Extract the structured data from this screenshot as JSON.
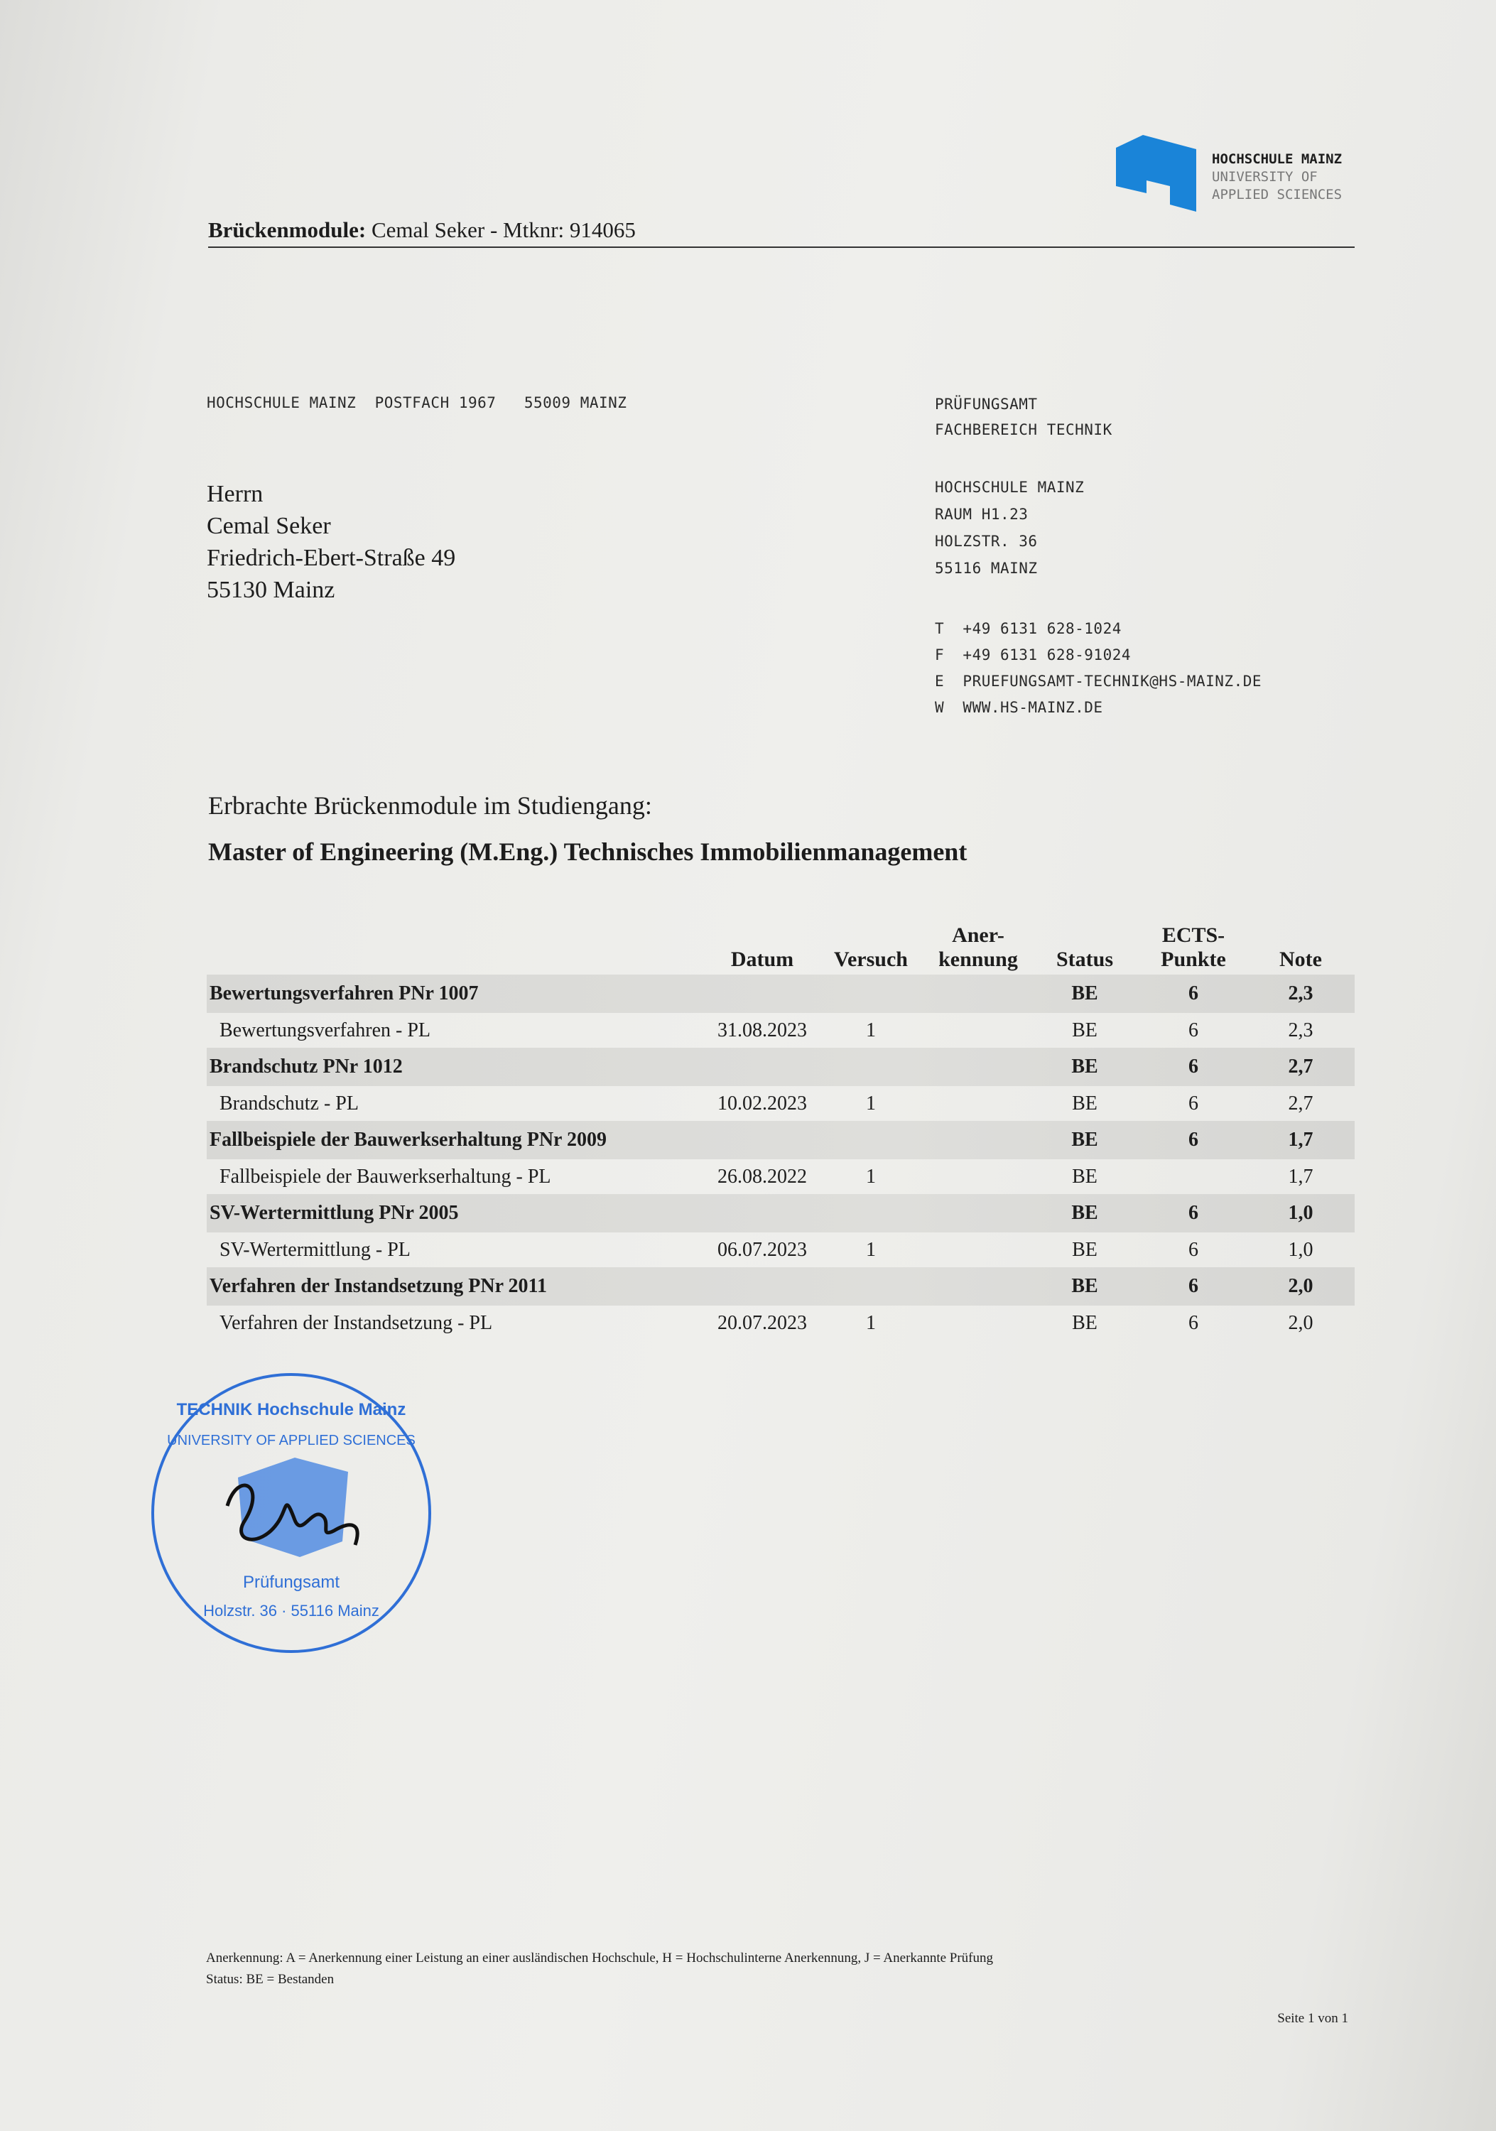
{
  "logo": {
    "line1": "HOCHSCHULE MAINZ",
    "line2": "UNIVERSITY OF",
    "line3": "APPLIED SCIENCES",
    "color": "#1a84d8"
  },
  "header": {
    "label": "Brückenmodule:",
    "text": "Cemal Seker - Mtknr: 914065"
  },
  "sender_line": "HOCHSCHULE MAINZ  POSTFACH 1967   55009 MAINZ",
  "recipient": [
    "Herrn",
    "Cemal Seker",
    "Friedrich-Ebert-Straße 49",
    "55130 Mainz"
  ],
  "office": {
    "dept": [
      "PRÜFUNGSAMT",
      "FACHBEREICH TECHNIK"
    ],
    "address": [
      "HOCHSCHULE MAINZ",
      "RAUM H1.23",
      "HOLZSTR. 36",
      "55116 MAINZ"
    ],
    "contact": [
      "T  +49 6131 628-1024",
      "F  +49 6131 628-91024",
      "E  PRUEFUNGSAMT-TECHNIK@HS-MAINZ.DE",
      "W  WWW.HS-MAINZ.DE"
    ]
  },
  "intro": "Erbrachte Brückenmodule im Studiengang:",
  "program": "Master of Engineering (M.Eng.) Technisches Immobilienmanagement",
  "table": {
    "headers": {
      "datum": "Datum",
      "versuch": "Versuch",
      "anerkennung_1": "Aner-",
      "anerkennung_2": "kennung",
      "status": "Status",
      "ects_1": "ECTS-",
      "ects_2": "Punkte",
      "note": "Note"
    },
    "modules": [
      {
        "name": "Bewertungsverfahren PNr 1007",
        "status": "BE",
        "ects": "6",
        "note": "2,3",
        "sub": {
          "name": "Bewertungsverfahren - PL",
          "datum": "31.08.2023",
          "versuch": "1",
          "status": "BE",
          "ects": "6",
          "note": "2,3"
        }
      },
      {
        "name": "Brandschutz PNr 1012",
        "status": "BE",
        "ects": "6",
        "note": "2,7",
        "sub": {
          "name": "Brandschutz - PL",
          "datum": "10.02.2023",
          "versuch": "1",
          "status": "BE",
          "ects": "6",
          "note": "2,7"
        }
      },
      {
        "name": "Fallbeispiele der Bauwerkserhaltung PNr 2009",
        "status": "BE",
        "ects": "6",
        "note": "1,7",
        "sub": {
          "name": "Fallbeispiele der Bauwerkserhaltung - PL",
          "datum": "26.08.2022",
          "versuch": "1",
          "status": "BE",
          "ects": "",
          "note": "1,7"
        }
      },
      {
        "name": "SV-Wertermittlung PNr 2005",
        "status": "BE",
        "ects": "6",
        "note": "1,0",
        "sub": {
          "name": "SV-Wertermittlung - PL",
          "datum": "06.07.2023",
          "versuch": "1",
          "status": "BE",
          "ects": "6",
          "note": "1,0"
        }
      },
      {
        "name": "Verfahren der Instandsetzung PNr 2011",
        "status": "BE",
        "ects": "6",
        "note": "2,0",
        "sub": {
          "name": "Verfahren der Instandsetzung - PL",
          "datum": "20.07.2023",
          "versuch": "1",
          "status": "BE",
          "ects": "6",
          "note": "2,0"
        }
      }
    ]
  },
  "stamp": {
    "text_top": "TECHNIK Hochschule Mainz",
    "text_ring": "UNIVERSITY OF APPLIED SCIENCES",
    "text_bottom": "Prüfungsamt",
    "text_address": "Holzstr. 36 · 55116 Mainz",
    "color": "#2f6fd6"
  },
  "footer": {
    "legend_anerkennung": "Anerkennung: A = Anerkennung einer Leistung an einer ausländischen Hochschule, H = Hochschulinterne Anerkennung, J = Anerkannte Prüfung",
    "legend_status": "Status: BE = Bestanden",
    "page": "Seite 1 von 1"
  }
}
